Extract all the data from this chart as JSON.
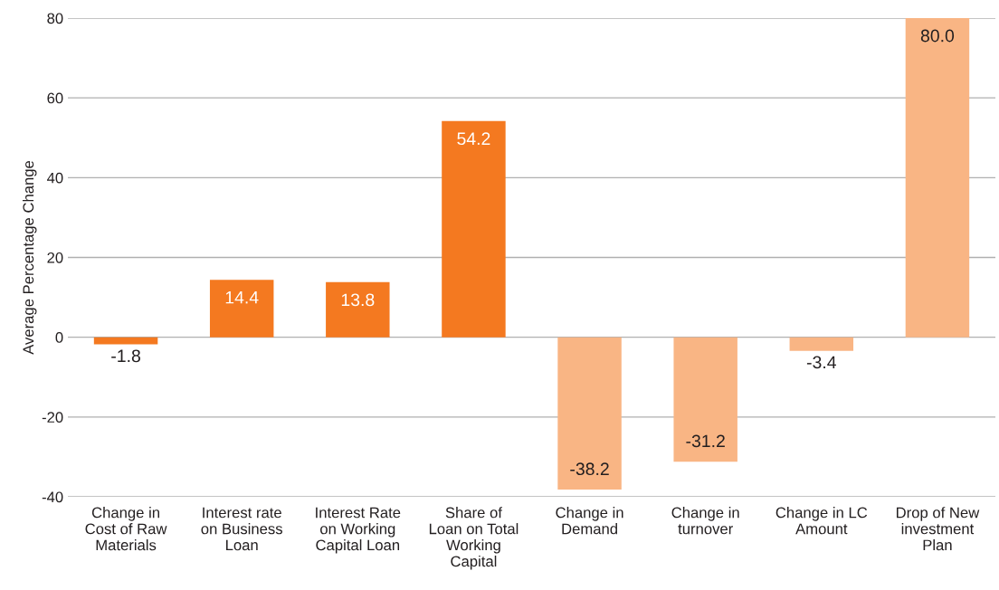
{
  "chart_data": {
    "type": "bar",
    "ylabel": "Average Percentage Change",
    "categories": [
      "Change in\nCost of Raw\nMaterials",
      "Interest rate\non Business\nLoan",
      "Interest Rate\non Working\nCapital Loan",
      "Share of\nLoan on Total\nWorking\nCapital",
      "Change in\nDemand",
      "Change in\nturnover",
      "Change in LC\nAmount",
      "Drop of New\ninvestment\nPlan"
    ],
    "values": [
      -1.8,
      14.4,
      13.8,
      54.2,
      -38.2,
      -31.2,
      -3.4,
      80.0
    ],
    "value_labels": [
      "-1.8",
      "14.4",
      "13.8",
      "54.2",
      "-38.2",
      "-31.2",
      "-3.4",
      "80.0"
    ],
    "colors": [
      "#f47920",
      "#f47920",
      "#f47920",
      "#f47920",
      "#f9b584",
      "#f9b584",
      "#f9b584",
      "#f9b584"
    ],
    "ylim": [
      -40,
      80
    ],
    "yticks": [
      -40,
      -20,
      0,
      20,
      40,
      60,
      80
    ],
    "grid": "y"
  }
}
